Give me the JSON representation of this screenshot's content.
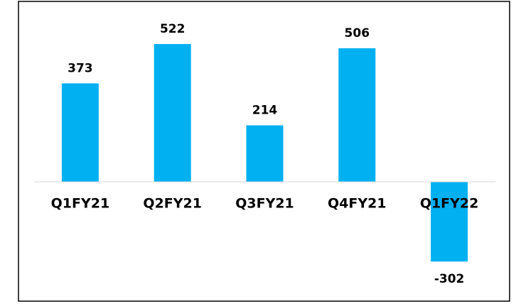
{
  "chart_data": {
    "type": "bar",
    "categories": [
      "Q1FY21",
      "Q2FY21",
      "Q3FY21",
      "Q4FY21",
      "Q1FY22"
    ],
    "values": [
      373,
      522,
      214,
      506,
      -302
    ],
    "color": "#00b0f0"
  }
}
